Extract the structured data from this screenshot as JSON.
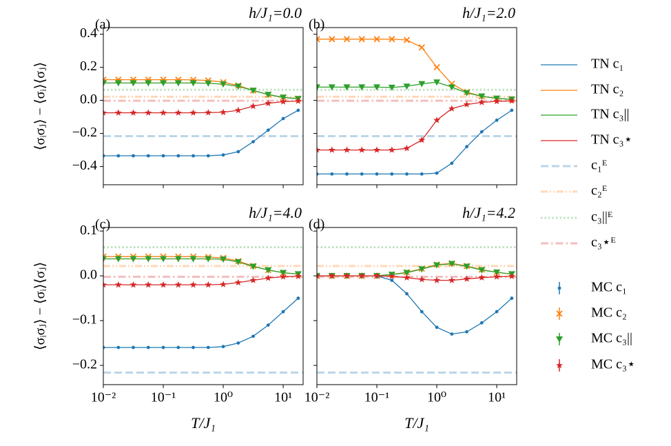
{
  "chart_data": [
    {
      "type": "line",
      "panel_label": "(a)",
      "title": "h/J₁=0.0",
      "ylabel": "⟨σᵢσⱼ⟩ − ⟨σᵢ⟩⟨σⱼ⟩",
      "xscale": "log",
      "x": [
        0.01,
        0.0178,
        0.0316,
        0.0562,
        0.1,
        0.178,
        0.316,
        0.562,
        1,
        1.78,
        3.16,
        5.62,
        10,
        17.8
      ],
      "xlim": [
        0.01,
        21.5
      ],
      "xticks": [
        0.01,
        0.1,
        1,
        10
      ],
      "ylim": [
        -0.51,
        0.44
      ],
      "yticks": [
        {
          "value": -0.4,
          "label": "−0.4"
        },
        {
          "value": -0.2,
          "label": "−0.2"
        },
        {
          "value": 0.0,
          "label": "0.0"
        },
        0.2,
        0.4
      ],
      "series": [
        {
          "name": "TN c₁",
          "color": "#1f77b4",
          "style": "line",
          "values": [
            -0.335,
            -0.335,
            -0.335,
            -0.335,
            -0.335,
            -0.335,
            -0.335,
            -0.335,
            -0.33,
            -0.31,
            -0.25,
            -0.18,
            -0.11,
            -0.06
          ]
        },
        {
          "name": "TN c₂",
          "color": "#ff7f0e",
          "style": "line",
          "values": [
            0.125,
            0.125,
            0.125,
            0.125,
            0.125,
            0.125,
            0.124,
            0.12,
            0.11,
            0.09,
            0.06,
            0.035,
            0.018,
            0.01
          ]
        },
        {
          "name": "TN c₃||",
          "color": "#2ca02c",
          "style": "line",
          "values": [
            0.105,
            0.105,
            0.105,
            0.105,
            0.105,
            0.105,
            0.105,
            0.103,
            0.098,
            0.085,
            0.06,
            0.035,
            0.018,
            0.01
          ]
        },
        {
          "name": "TN c₃⋆",
          "color": "#d62728",
          "style": "line",
          "values": [
            -0.075,
            -0.075,
            -0.075,
            -0.075,
            -0.075,
            -0.075,
            -0.075,
            -0.074,
            -0.072,
            -0.06,
            -0.035,
            -0.018,
            -0.008,
            -0.004
          ]
        },
        {
          "name": "c₁ᴱ",
          "color": "#1f77b4",
          "dash": "dashed",
          "value": -0.216
        },
        {
          "name": "c₂ᴱ",
          "color": "#ff7f0e",
          "dash": "dashdotdot",
          "value": 0.022
        },
        {
          "name": "c₃||ᴱ",
          "color": "#2ca02c",
          "dash": "dotted",
          "value": 0.064
        },
        {
          "name": "c₃⋆ᴱ",
          "color": "#d62728",
          "dash": "dashdot",
          "value": -0.002
        },
        {
          "name": "MC c₁",
          "color": "#1f77b4",
          "marker": "circle",
          "values": [
            -0.335,
            -0.335,
            -0.335,
            -0.335,
            -0.335,
            -0.335,
            -0.335,
            -0.335,
            -0.33,
            -0.31,
            -0.25,
            -0.18,
            -0.11,
            -0.06
          ]
        },
        {
          "name": "MC c₂",
          "color": "#ff7f0e",
          "marker": "x",
          "values": [
            0.125,
            0.125,
            0.125,
            0.125,
            0.125,
            0.125,
            0.124,
            0.12,
            0.11,
            0.09,
            0.06,
            0.035,
            0.018,
            0.01
          ]
        },
        {
          "name": "MC c₃||",
          "color": "#2ca02c",
          "marker": "triangle",
          "values": [
            0.105,
            0.105,
            0.105,
            0.105,
            0.105,
            0.105,
            0.105,
            0.103,
            0.098,
            0.085,
            0.06,
            0.035,
            0.018,
            0.01
          ]
        },
        {
          "name": "MC c₃⋆",
          "color": "#d62728",
          "marker": "star",
          "values": [
            -0.075,
            -0.075,
            -0.075,
            -0.075,
            -0.075,
            -0.075,
            -0.075,
            -0.074,
            -0.072,
            -0.06,
            -0.035,
            -0.018,
            -0.008,
            -0.004
          ]
        }
      ]
    },
    {
      "type": "line",
      "panel_label": "(b)",
      "title": "h/J₁=2.0",
      "xscale": "log",
      "x": [
        0.01,
        0.0178,
        0.0316,
        0.0562,
        0.1,
        0.178,
        0.316,
        0.562,
        1,
        1.78,
        3.16,
        5.62,
        10,
        17.8
      ],
      "xlim": [
        0.01,
        21.5
      ],
      "xticks": [
        0.01,
        0.1,
        1,
        10
      ],
      "ylim": [
        -0.51,
        0.44
      ],
      "yticks": [
        -0.4,
        -0.2,
        0.0,
        0.2,
        0.4
      ],
      "series": [
        {
          "color": "#1f77b4",
          "style": "line",
          "values": [
            -0.445,
            -0.445,
            -0.445,
            -0.445,
            -0.445,
            -0.445,
            -0.445,
            -0.445,
            -0.44,
            -0.38,
            -0.28,
            -0.19,
            -0.12,
            -0.06
          ]
        },
        {
          "color": "#ff7f0e",
          "style": "line",
          "values": [
            0.37,
            0.37,
            0.37,
            0.37,
            0.37,
            0.37,
            0.365,
            0.32,
            0.2,
            0.1,
            0.05,
            0.025,
            0.012,
            0.006
          ]
        },
        {
          "color": "#2ca02c",
          "style": "line",
          "values": [
            0.08,
            0.08,
            0.08,
            0.08,
            0.08,
            0.078,
            0.085,
            0.1,
            0.11,
            0.08,
            0.045,
            0.025,
            0.012,
            0.006
          ]
        },
        {
          "color": "#d62728",
          "style": "line",
          "values": [
            -0.3,
            -0.3,
            -0.3,
            -0.3,
            -0.3,
            -0.3,
            -0.29,
            -0.24,
            -0.12,
            -0.05,
            -0.025,
            -0.012,
            -0.006,
            -0.003
          ]
        },
        {
          "color": "#1f77b4",
          "dash": "dashed",
          "value": -0.216
        },
        {
          "color": "#ff7f0e",
          "dash": "dashdotdot",
          "value": 0.022
        },
        {
          "color": "#2ca02c",
          "dash": "dotted",
          "value": 0.064
        },
        {
          "color": "#d62728",
          "dash": "dashdot",
          "value": -0.002
        },
        {
          "color": "#1f77b4",
          "marker": "circle",
          "values": [
            -0.445,
            -0.445,
            -0.445,
            -0.445,
            -0.445,
            -0.445,
            -0.445,
            -0.445,
            -0.44,
            -0.38,
            -0.28,
            -0.19,
            -0.12,
            -0.06
          ]
        },
        {
          "color": "#ff7f0e",
          "marker": "x",
          "values": [
            0.37,
            0.37,
            0.37,
            0.37,
            0.37,
            0.37,
            0.365,
            0.32,
            0.2,
            0.1,
            0.05,
            0.025,
            0.012,
            0.006
          ]
        },
        {
          "color": "#2ca02c",
          "marker": "triangle",
          "values": [
            0.08,
            0.08,
            0.08,
            0.08,
            0.08,
            0.078,
            0.085,
            0.1,
            0.11,
            0.08,
            0.045,
            0.025,
            0.012,
            0.006
          ]
        },
        {
          "color": "#d62728",
          "marker": "star",
          "values": [
            -0.3,
            -0.3,
            -0.3,
            -0.3,
            -0.3,
            -0.3,
            -0.29,
            -0.24,
            -0.12,
            -0.05,
            -0.025,
            -0.012,
            -0.006,
            -0.003
          ]
        }
      ]
    },
    {
      "type": "line",
      "panel_label": "(c)",
      "title": "h/J₁=4.0",
      "ylabel": "⟨σᵢσⱼ⟩ − ⟨σᵢ⟩⟨σⱼ⟩",
      "xlabel": "T/J₁",
      "xscale": "log",
      "x": [
        0.01,
        0.0178,
        0.0316,
        0.0562,
        0.1,
        0.178,
        0.316,
        0.562,
        1,
        1.78,
        3.16,
        5.62,
        10,
        17.8
      ],
      "xlim": [
        0.01,
        21.5
      ],
      "xticks": [
        {
          "value": 0.01,
          "label": "10⁻²"
        },
        {
          "value": 0.1,
          "label": "10⁻¹"
        },
        {
          "value": 1,
          "label": "10⁰"
        },
        {
          "value": 10,
          "label": "10¹"
        }
      ],
      "ylim": [
        -0.243,
        0.108
      ],
      "yticks": [
        {
          "value": -0.2,
          "label": "−0.2"
        },
        {
          "value": -0.1,
          "label": "−0.1"
        },
        {
          "value": 0.0,
          "label": "0.0"
        },
        0.1
      ],
      "series": [
        {
          "color": "#1f77b4",
          "style": "line",
          "values": [
            -0.16,
            -0.16,
            -0.16,
            -0.16,
            -0.16,
            -0.16,
            -0.16,
            -0.16,
            -0.158,
            -0.15,
            -0.135,
            -0.11,
            -0.08,
            -0.05
          ]
        },
        {
          "color": "#ff7f0e",
          "style": "line",
          "values": [
            0.043,
            0.043,
            0.043,
            0.043,
            0.043,
            0.043,
            0.043,
            0.042,
            0.04,
            0.033,
            0.022,
            0.013,
            0.007,
            0.004
          ]
        },
        {
          "color": "#2ca02c",
          "style": "line",
          "values": [
            0.038,
            0.038,
            0.038,
            0.038,
            0.038,
            0.038,
            0.038,
            0.038,
            0.037,
            0.031,
            0.021,
            0.013,
            0.007,
            0.004
          ]
        },
        {
          "color": "#d62728",
          "style": "line",
          "values": [
            -0.02,
            -0.02,
            -0.02,
            -0.02,
            -0.02,
            -0.02,
            -0.02,
            -0.02,
            -0.019,
            -0.015,
            -0.01,
            -0.005,
            -0.002,
            -0.001
          ]
        },
        {
          "color": "#1f77b4",
          "dash": "dashed",
          "value": -0.216
        },
        {
          "color": "#ff7f0e",
          "dash": "dashdotdot",
          "value": 0.022
        },
        {
          "color": "#2ca02c",
          "dash": "dotted",
          "value": 0.064
        },
        {
          "color": "#d62728",
          "dash": "dashdot",
          "value": -0.002
        },
        {
          "color": "#1f77b4",
          "marker": "circle",
          "values": [
            -0.16,
            -0.16,
            -0.16,
            -0.16,
            -0.16,
            -0.16,
            -0.16,
            -0.16,
            -0.158,
            -0.15,
            -0.135,
            -0.11,
            -0.08,
            -0.05
          ]
        },
        {
          "color": "#ff7f0e",
          "marker": "x",
          "values": [
            0.043,
            0.043,
            0.043,
            0.043,
            0.043,
            0.043,
            0.043,
            0.042,
            0.04,
            0.033,
            0.022,
            0.013,
            0.007,
            0.004
          ]
        },
        {
          "color": "#2ca02c",
          "marker": "triangle",
          "values": [
            0.038,
            0.038,
            0.038,
            0.038,
            0.038,
            0.038,
            0.038,
            0.038,
            0.037,
            0.031,
            0.021,
            0.013,
            0.007,
            0.004
          ]
        },
        {
          "color": "#d62728",
          "marker": "star",
          "values": [
            -0.02,
            -0.02,
            -0.02,
            -0.02,
            -0.02,
            -0.02,
            -0.02,
            -0.02,
            -0.019,
            -0.015,
            -0.01,
            -0.005,
            -0.002,
            -0.001
          ]
        }
      ]
    },
    {
      "type": "line",
      "panel_label": "(d)",
      "title": "h/J₁=4.2",
      "xlabel": "T/J₁",
      "xscale": "log",
      "x": [
        0.01,
        0.0178,
        0.0316,
        0.0562,
        0.1,
        0.178,
        0.316,
        0.562,
        1,
        1.78,
        3.16,
        5.62,
        10,
        17.8
      ],
      "xlim": [
        0.01,
        21.5
      ],
      "xticks": [
        {
          "value": 0.01,
          "label": "10⁻²"
        },
        {
          "value": 0.1,
          "label": "10⁻¹"
        },
        {
          "value": 1,
          "label": "10⁰"
        },
        {
          "value": 10,
          "label": "10¹"
        }
      ],
      "ylim": [
        -0.243,
        0.108
      ],
      "yticks": [
        -0.2,
        -0.1,
        0.0,
        0.1
      ],
      "series": [
        {
          "color": "#1f77b4",
          "style": "line",
          "values": [
            0,
            0,
            0,
            0,
            0,
            -0.01,
            -0.04,
            -0.08,
            -0.115,
            -0.13,
            -0.125,
            -0.105,
            -0.08,
            -0.05
          ]
        },
        {
          "color": "#ff7f0e",
          "style": "line",
          "values": [
            0,
            0,
            0,
            0,
            0,
            0.003,
            0.008,
            0.016,
            0.025,
            0.028,
            0.022,
            0.014,
            0.008,
            0.004
          ]
        },
        {
          "color": "#2ca02c",
          "style": "line",
          "values": [
            0,
            0,
            0,
            0,
            0,
            0.003,
            0.007,
            0.015,
            0.024,
            0.027,
            0.021,
            0.013,
            0.008,
            0.004
          ]
        },
        {
          "color": "#d62728",
          "style": "line",
          "values": [
            0,
            0,
            0,
            0,
            0,
            -0.001,
            -0.004,
            -0.008,
            -0.01,
            -0.01,
            -0.007,
            -0.004,
            -0.002,
            -0.001
          ]
        },
        {
          "color": "#1f77b4",
          "dash": "dashed",
          "value": -0.216
        },
        {
          "color": "#ff7f0e",
          "dash": "dashdotdot",
          "value": 0.022
        },
        {
          "color": "#2ca02c",
          "dash": "dotted",
          "value": 0.064
        },
        {
          "color": "#d62728",
          "dash": "dashdot",
          "value": -0.002
        },
        {
          "color": "#1f77b4",
          "marker": "circle",
          "values": [
            0,
            0,
            0,
            0,
            0,
            -0.01,
            -0.04,
            -0.08,
            -0.115,
            -0.13,
            -0.125,
            -0.105,
            -0.08,
            -0.05
          ]
        },
        {
          "color": "#ff7f0e",
          "marker": "x",
          "values": [
            0,
            0,
            0,
            0,
            0,
            0.003,
            0.008,
            0.016,
            0.025,
            0.028,
            0.022,
            0.014,
            0.008,
            0.004
          ]
        },
        {
          "color": "#2ca02c",
          "marker": "triangle",
          "values": [
            0,
            0,
            0,
            0,
            0,
            0.003,
            0.007,
            0.015,
            0.024,
            0.027,
            0.021,
            0.013,
            0.008,
            0.004
          ]
        },
        {
          "color": "#d62728",
          "marker": "star",
          "values": [
            0,
            0,
            0,
            0,
            0,
            -0.001,
            -0.004,
            -0.008,
            -0.01,
            -0.01,
            -0.007,
            -0.004,
            -0.002,
            -0.001
          ]
        }
      ]
    }
  ]
}
